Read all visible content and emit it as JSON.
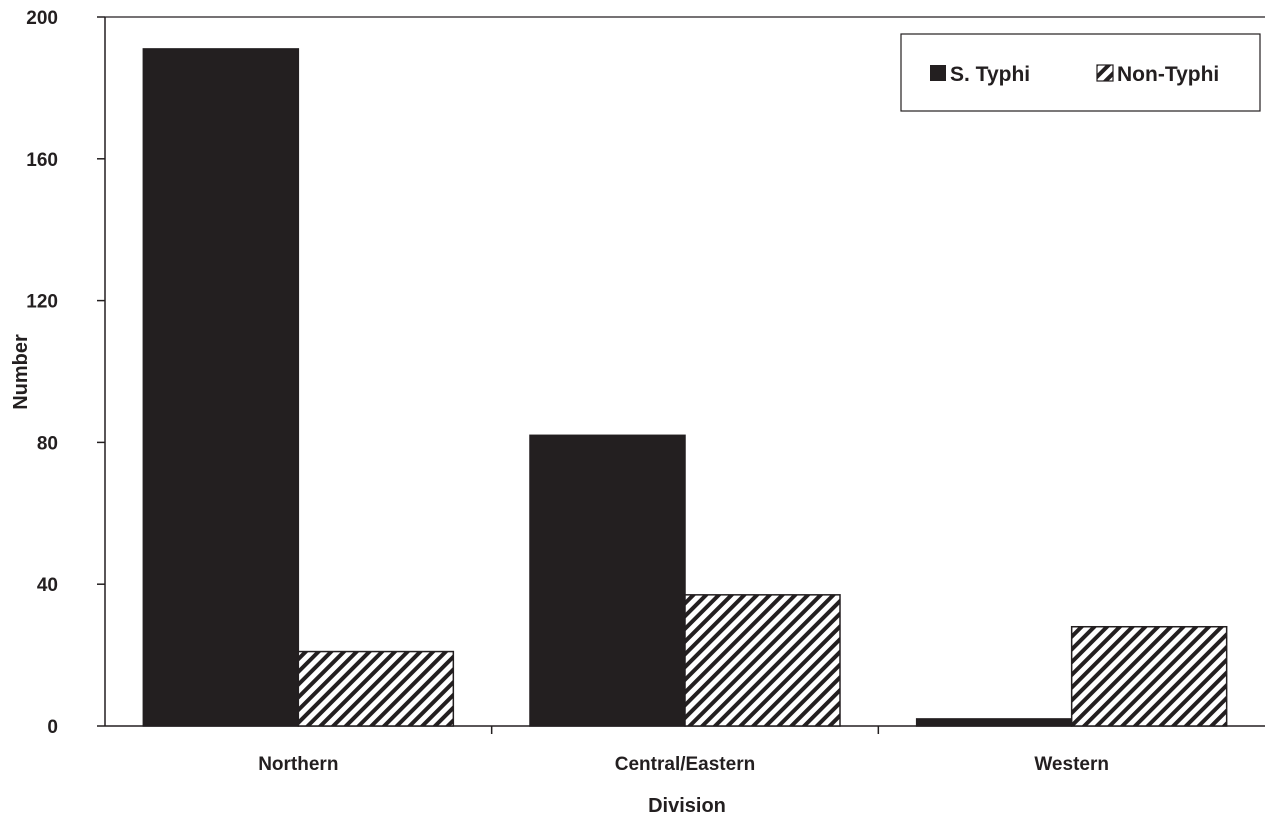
{
  "chart_data": {
    "type": "bar",
    "title": "",
    "xlabel": "Division",
    "ylabel": "Number",
    "categories": [
      "Northern",
      "Central/Eastern",
      "Western"
    ],
    "series": [
      {
        "name": "S. Typhi",
        "values": [
          191,
          82,
          2
        ],
        "fill": "solid",
        "color": "#231f20"
      },
      {
        "name": "Non-Typhi",
        "values": [
          21,
          37,
          28
        ],
        "fill": "diagonal-hatch",
        "color": "#231f20"
      }
    ],
    "ylim": [
      0,
      200
    ],
    "yticks": [
      "0",
      "40",
      "80",
      "120",
      "160",
      "200"
    ],
    "grid": false,
    "legend_position": "top-right"
  }
}
